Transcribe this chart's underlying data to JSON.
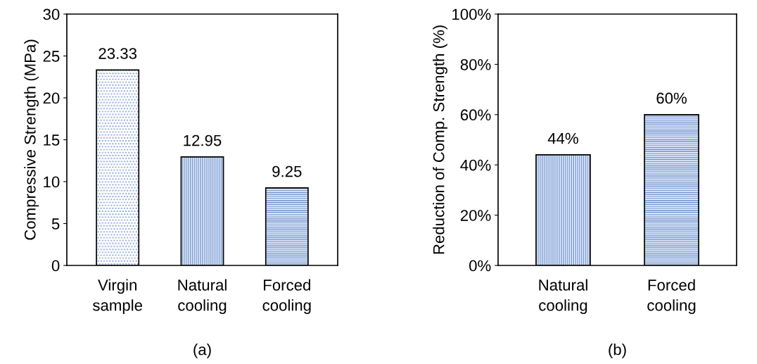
{
  "chart_data": [
    {
      "type": "bar",
      "categories": [
        "Virgin\nsample",
        "Natural\ncooling",
        "Forced\ncooling"
      ],
      "values": [
        23.33,
        12.95,
        9.25
      ],
      "colors": [
        "#6f8fcf",
        "#4472c4",
        "#4472c4"
      ],
      "ylabel": "Compressive Strength (MPa)",
      "ylim": [
        0,
        30
      ],
      "yticks": [
        0,
        5,
        10,
        15,
        20,
        25,
        30
      ],
      "data_labels": true,
      "grid": false,
      "annotations": [
        "(a)"
      ]
    },
    {
      "type": "bar",
      "categories": [
        "Natural\ncooling",
        "Forced\ncooling"
      ],
      "values": [
        44,
        60
      ],
      "colors": [
        "#4472c4",
        "#4472c4"
      ],
      "ylabel": "Reduction of Comp. Strength (%)",
      "ylim": [
        0,
        100
      ],
      "yticks": [
        {
          "value": 0,
          "label": "0%"
        },
        {
          "value": 20,
          "label": "20%"
        },
        {
          "value": 40,
          "label": "40%"
        },
        {
          "value": 60,
          "label": "60%"
        },
        {
          "value": 80,
          "label": "80%"
        },
        {
          "value": 100,
          "label": "100%"
        }
      ],
      "value_labels": [
        "44%",
        "60%"
      ],
      "grid": false,
      "annotations": [
        "(b)"
      ]
    }
  ]
}
